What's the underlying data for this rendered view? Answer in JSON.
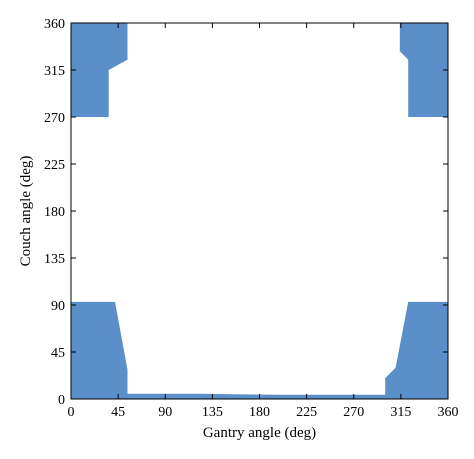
{
  "chart_data": {
    "type": "area",
    "xlabel": "Gantry angle (deg)",
    "ylabel": "Couch angle (deg)",
    "xlim": [
      0,
      360
    ],
    "ylim": [
      0,
      360
    ],
    "xticks": [
      0,
      45,
      90,
      135,
      180,
      225,
      270,
      315,
      360
    ],
    "yticks": [
      0,
      45,
      90,
      135,
      180,
      225,
      270,
      315,
      360
    ],
    "grid": false,
    "fill_color": "#5b8fc9",
    "regions": [
      {
        "polygon": [
          [
            0,
            360
          ],
          [
            54,
            360
          ],
          [
            54,
            325
          ],
          [
            36,
            315
          ],
          [
            36,
            270
          ],
          [
            0,
            270
          ]
        ]
      },
      {
        "polygon": [
          [
            314,
            360
          ],
          [
            360,
            360
          ],
          [
            360,
            270
          ],
          [
            322,
            270
          ],
          [
            322,
            325
          ],
          [
            314,
            333
          ]
        ]
      },
      {
        "polygon": [
          [
            0,
            93
          ],
          [
            42,
            93
          ],
          [
            54,
            28
          ],
          [
            54,
            5
          ],
          [
            122,
            5
          ],
          [
            200,
            4
          ],
          [
            250,
            4
          ],
          [
            300,
            4
          ],
          [
            300,
            20
          ],
          [
            310,
            30
          ],
          [
            322,
            93
          ],
          [
            360,
            93
          ],
          [
            360,
            0
          ],
          [
            0,
            0
          ]
        ]
      }
    ]
  }
}
